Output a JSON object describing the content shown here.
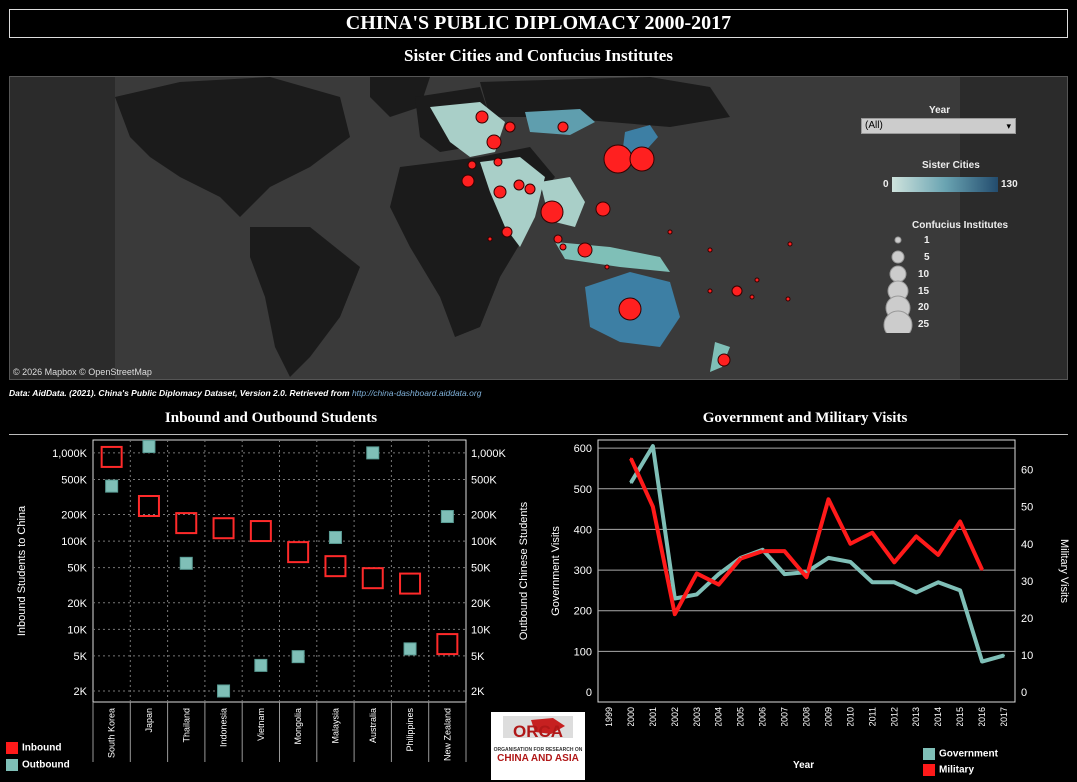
{
  "header": {
    "title": "CHINA'S PUBLIC DIPLOMACY 2000-2017",
    "map_title": "Sister Cities and Confucius Institutes",
    "source_prefix": "Data: AidData. (2021). China's Public Diplomacy Dataset, Version 2.0. Retrieved from",
    "source_link": "http://china-dashboard.aiddata.org",
    "students_title": "Inbound and Outbound Students",
    "visits_title": "Government and Military Visits"
  },
  "map": {
    "attribution": "© 2026 Mapbox © OpenStreetMap",
    "year_label": "Year",
    "year_value": "(All)",
    "sister_label": "Sister Cities",
    "sister_min": "0",
    "sister_max": "130",
    "ci_label": "Confucius Institutes",
    "ci_sizes": [
      "1",
      "5",
      "10",
      "15",
      "20",
      "25"
    ],
    "colors": {
      "fill_low": "#a9cfc8",
      "fill_high": "#2f6f8f",
      "bubble": "#ff2020"
    }
  },
  "students_legend": {
    "inbound": "Inbound",
    "outbound": "Outbound"
  },
  "visits_legend": {
    "government": "Government",
    "military": "Military",
    "xlabel": "Year"
  },
  "logo": {
    "top": "ORCA",
    "line1": "ORGANISATION FOR RESEARCH ON",
    "line2": "CHINA AND ASIA"
  },
  "chart_data": [
    {
      "type": "scatter",
      "scale": "log",
      "categories": [
        "South Korea",
        "Japan",
        "Thailand",
        "Indonesia",
        "Vietnam",
        "Mongolia",
        "Malaysia",
        "Australia",
        "Philippines",
        "New Zealand"
      ],
      "series": [
        {
          "name": "Inbound",
          "values": [
            900000,
            250000,
            160000,
            140000,
            130000,
            75000,
            52000,
            38000,
            33000,
            6800
          ],
          "color": "#ff2a2a"
        },
        {
          "name": "Outbound",
          "values": [
            420000,
            1180000,
            56000,
            2000,
            3900,
            4900,
            110000,
            1000000,
            6000,
            190000
          ],
          "color": "#7fbfb7"
        }
      ],
      "ylabel": "Inbound Students to China",
      "y2label": "Outbound Chinese Students",
      "yticks": [
        2000,
        5000,
        10000,
        20000,
        50000,
        100000,
        200000,
        500000,
        1000000
      ],
      "ytick_labels": [
        "2K",
        "5K",
        "10K",
        "20K",
        "50K",
        "100K",
        "200K",
        "500K",
        "1,000K"
      ],
      "grid": true
    },
    {
      "type": "line",
      "x": [
        1999,
        2000,
        2001,
        2002,
        2003,
        2004,
        2005,
        2006,
        2007,
        2008,
        2009,
        2010,
        2011,
        2012,
        2013,
        2014,
        2015,
        2016,
        2017
      ],
      "series": [
        {
          "name": "Government",
          "axis": "left",
          "x": [
            2000,
            2001,
            2002,
            2003,
            2004,
            2005,
            2006,
            2007,
            2008,
            2009,
            2010,
            2011,
            2012,
            2013,
            2014,
            2015,
            2016,
            2017
          ],
          "values": [
            515,
            605,
            230,
            240,
            290,
            330,
            350,
            290,
            295,
            330,
            320,
            270,
            270,
            245,
            270,
            250,
            75,
            90
          ],
          "color": "#7fbfb7"
        },
        {
          "name": "Military",
          "axis": "right",
          "x": [
            2000,
            2001,
            2002,
            2003,
            2004,
            2005,
            2006,
            2007,
            2008,
            2009,
            2010,
            2011,
            2012,
            2013,
            2014,
            2015,
            2016
          ],
          "values": [
            63,
            50,
            21,
            32,
            29,
            36,
            38,
            38,
            31,
            52,
            40,
            43,
            35,
            42,
            37,
            46,
            33
          ],
          "color": "#ff1a1a"
        }
      ],
      "ylabel": "Government Visits",
      "y2label": "Military Visits",
      "xlabel": "Year",
      "ylim": [
        0,
        620
      ],
      "y2lim": [
        0,
        68
      ],
      "yticks": [
        0,
        100,
        200,
        300,
        400,
        500,
        600
      ],
      "y2ticks": [
        0,
        10,
        20,
        30,
        40,
        50,
        60
      ],
      "grid": true
    }
  ]
}
